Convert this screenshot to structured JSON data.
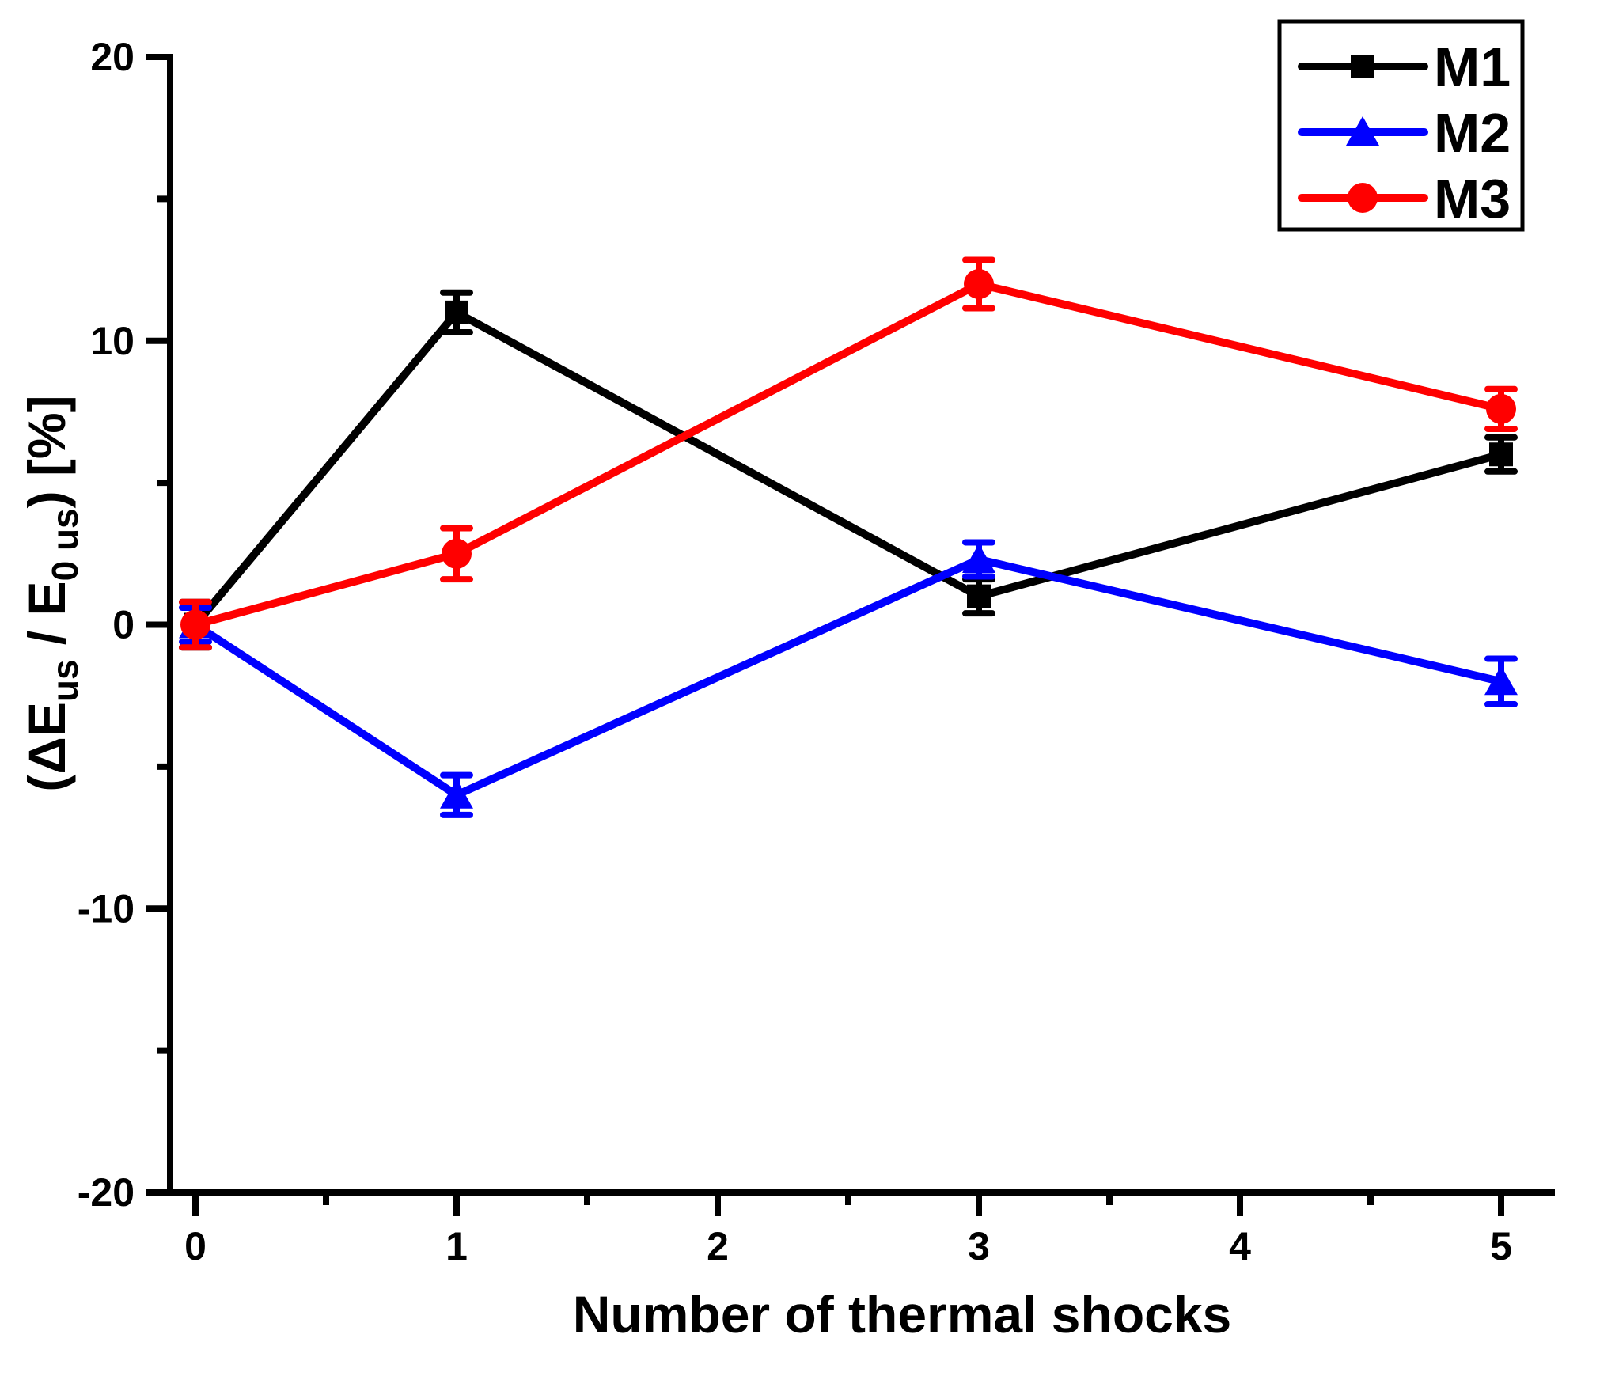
{
  "canvas": {
    "background": "#ffffff"
  },
  "chart_data": {
    "type": "line",
    "title": "",
    "xlabel": "Number of thermal shocks",
    "ylabel": "(ΔE_us / E_0 us) [%]",
    "ylabel_parts": [
      {
        "text": "(ΔE",
        "sub": false
      },
      {
        "text": "us",
        "sub": true
      },
      {
        "text": " / E",
        "sub": false
      },
      {
        "text": "0 us",
        "sub": true
      },
      {
        "text": ") [%]",
        "sub": false
      }
    ],
    "x": [
      0,
      1,
      3,
      5
    ],
    "series": [
      {
        "name": "M1",
        "color": "#000000",
        "marker": "square",
        "values": [
          0.0,
          11.0,
          1.0,
          6.0
        ],
        "errors": [
          0.8,
          0.7,
          0.6,
          0.6
        ]
      },
      {
        "name": "M2",
        "color": "#0000ff",
        "marker": "triangle",
        "values": [
          0.0,
          -6.0,
          2.3,
          -2.0
        ],
        "errors": [
          0.6,
          0.7,
          0.6,
          0.8
        ]
      },
      {
        "name": "M3",
        "color": "#ff0000",
        "marker": "circle",
        "values": [
          0.0,
          2.5,
          12.0,
          7.6
        ],
        "errors": [
          0.8,
          0.9,
          0.85,
          0.7
        ]
      }
    ],
    "xlim": [
      -0.1,
      5.2
    ],
    "ylim": [
      -20,
      20
    ],
    "x_major_ticks": [
      0,
      1,
      2,
      3,
      4,
      5
    ],
    "x_minor_ticks": [
      0.5,
      1.5,
      2.5,
      3.5,
      4.5
    ],
    "y_major_ticks": [
      20,
      10,
      0,
      -10,
      -20
    ],
    "y_minor_ticks": [
      15,
      5,
      -5,
      -15
    ],
    "grid": false,
    "error_bars": true,
    "legend_position": "top-right",
    "legend_entries": [
      "M1",
      "M2",
      "M3"
    ]
  }
}
